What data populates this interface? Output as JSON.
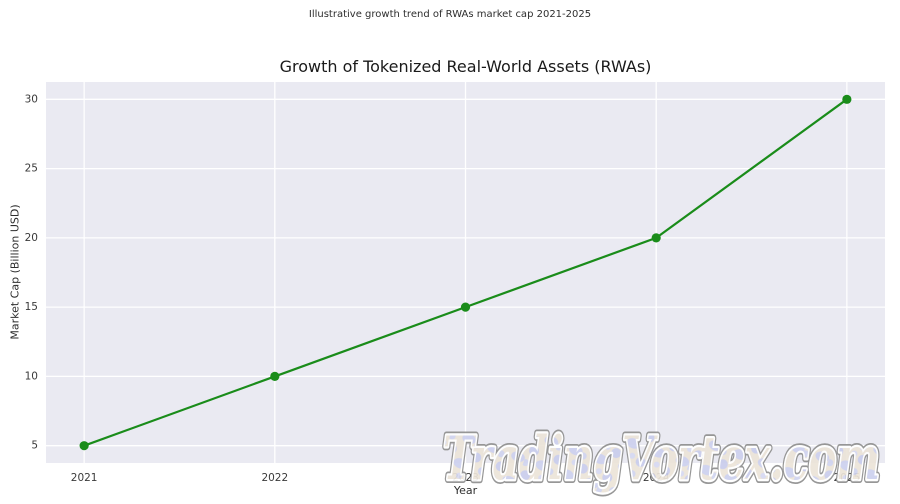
{
  "figure": {
    "caption": "Illustrative growth trend of RWAs market cap 2021-2025"
  },
  "chart_data": {
    "type": "line",
    "title": "Growth of Tokenized Real-World Assets (RWAs)",
    "xlabel": "Year",
    "ylabel": "Market Cap (Billion USD)",
    "categories": [
      2021,
      2022,
      2023,
      2024,
      2025
    ],
    "values": [
      5,
      10,
      15,
      20,
      30
    ],
    "y_ticks": [
      5,
      10,
      15,
      20,
      25,
      30
    ],
    "xlim": [
      2020.8,
      2025.2
    ],
    "ylim": [
      3.75,
      31.25
    ],
    "grid": true,
    "legend": "none",
    "line_color": "#1a8c1a",
    "marker": "circle",
    "plot_bg": "#eaeaf2",
    "grid_color": "#ffffff"
  },
  "watermark": {
    "text": "TradingVortex.com"
  }
}
